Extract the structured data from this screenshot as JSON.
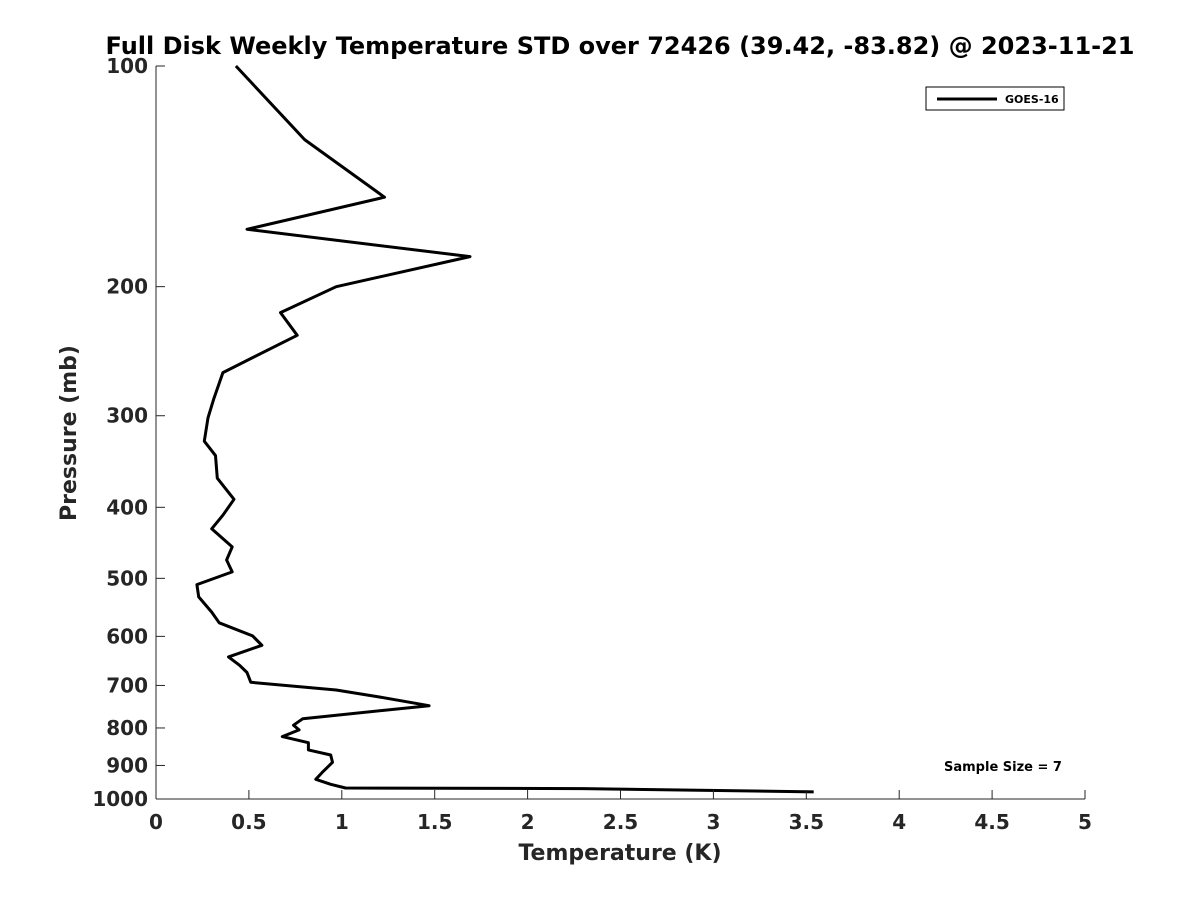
{
  "chart_data": {
    "type": "line",
    "title": "Full Disk Weekly Temperature STD over 72426 (39.42, -83.82) @ 2023-11-21",
    "xlabel": "Temperature (K)",
    "ylabel": "Pressure (mb)",
    "xlim": [
      0,
      5
    ],
    "ylim": [
      100,
      1000
    ],
    "yscale": "log",
    "yreversed": true,
    "xticks": [
      "0",
      "0.5",
      "1",
      "1.5",
      "2",
      "2.5",
      "3",
      "3.5",
      "4",
      "4.5",
      "5"
    ],
    "yticks": [
      "100",
      "200",
      "300",
      "400",
      "500",
      "600",
      "700",
      "800",
      "900",
      "1000"
    ],
    "grid": false,
    "legend_position": "top-right",
    "annotation": "Sample Size = 7",
    "series": [
      {
        "name": "GOES-16",
        "color": "#000000",
        "points": [
          [
            0.43,
            100
          ],
          [
            0.8,
            126
          ],
          [
            1.23,
            151
          ],
          [
            0.49,
            167
          ],
          [
            1.69,
            182
          ],
          [
            0.97,
            200
          ],
          [
            0.67,
            217
          ],
          [
            0.76,
            233
          ],
          [
            0.36,
            262
          ],
          [
            0.31,
            285
          ],
          [
            0.28,
            302
          ],
          [
            0.26,
            325
          ],
          [
            0.32,
            340
          ],
          [
            0.33,
            365
          ],
          [
            0.42,
            390
          ],
          [
            0.36,
            410
          ],
          [
            0.3,
            428
          ],
          [
            0.41,
            453
          ],
          [
            0.38,
            472
          ],
          [
            0.41,
            490
          ],
          [
            0.22,
            510
          ],
          [
            0.23,
            530
          ],
          [
            0.3,
            556
          ],
          [
            0.34,
            575
          ],
          [
            0.52,
            599
          ],
          [
            0.57,
            617
          ],
          [
            0.39,
            640
          ],
          [
            0.45,
            657
          ],
          [
            0.49,
            672
          ],
          [
            0.51,
            693
          ],
          [
            0.97,
            710
          ],
          [
            1.19,
            725
          ],
          [
            1.47,
            746
          ],
          [
            0.79,
            777
          ],
          [
            0.74,
            793
          ],
          [
            0.77,
            805
          ],
          [
            0.68,
            822
          ],
          [
            0.82,
            838
          ],
          [
            0.82,
            857
          ],
          [
            0.94,
            871
          ],
          [
            0.95,
            891
          ],
          [
            0.9,
            917
          ],
          [
            0.86,
            940
          ],
          [
            0.94,
            955
          ],
          [
            1.02,
            966
          ],
          [
            2.3,
            968
          ],
          [
            3.54,
            978
          ]
        ]
      }
    ]
  }
}
